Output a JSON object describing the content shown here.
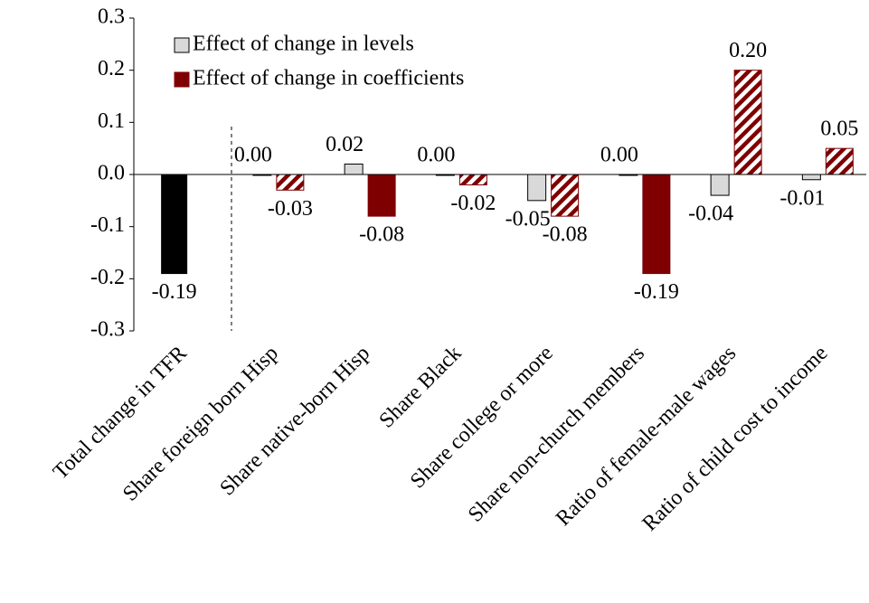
{
  "chart_data": {
    "type": "bar",
    "categories": [
      "Total change in TFR",
      "Share foreign born Hisp",
      "Share native-born Hisp",
      "Share Black",
      "Share college or more",
      "Share non-church members",
      "Ratio of female-male wages",
      "Ratio of child cost to income"
    ],
    "series": [
      {
        "color": "#000000",
        "values": [
          -0.19,
          null,
          null,
          null,
          null,
          null,
          null,
          null
        ],
        "value_labels": [
          "-0.19",
          null,
          null,
          null,
          null,
          null,
          null,
          null
        ]
      },
      {
        "name": "Effect of change in levels",
        "color": "#d9d9d9",
        "values": [
          null,
          0.0,
          0.02,
          0.0,
          -0.05,
          0.0,
          -0.04,
          -0.01
        ],
        "value_labels": [
          null,
          "0.00",
          "0.02",
          "0.00",
          "-0.05",
          "0.00",
          "-0.04",
          "-0.01"
        ]
      },
      {
        "name": "Effect of change in coefficients",
        "color": "#7f0000",
        "values": [
          null,
          -0.03,
          -0.08,
          -0.02,
          -0.08,
          -0.19,
          0.2,
          0.05
        ],
        "value_labels": [
          null,
          "-0.03",
          "-0.08",
          "-0.02",
          "-0.08",
          "-0.19",
          "0.20",
          "0.05"
        ],
        "hatched": [
          false,
          true,
          false,
          true,
          true,
          false,
          true,
          true
        ]
      }
    ],
    "ylim": [
      -0.3,
      0.3
    ],
    "yticks": [
      -0.3,
      -0.2,
      -0.1,
      {
        "value": 0,
        "label": "0.0"
      },
      0.1,
      0.2,
      0.3
    ],
    "legend": "upper left"
  }
}
